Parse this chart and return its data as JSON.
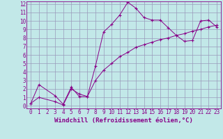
{
  "xlabel": "Windchill (Refroidissement éolien,°C)",
  "background_color": "#c2e8e8",
  "grid_color": "#9999bb",
  "line_color": "#880088",
  "xlim": [
    -0.5,
    23.5
  ],
  "ylim": [
    -0.3,
    12.3
  ],
  "xticks": [
    0,
    1,
    2,
    3,
    4,
    5,
    6,
    7,
    8,
    9,
    10,
    11,
    12,
    13,
    14,
    15,
    16,
    17,
    18,
    19,
    20,
    21,
    22,
    23
  ],
  "yticks": [
    0,
    1,
    2,
    3,
    4,
    5,
    6,
    7,
    8,
    9,
    10,
    11,
    12
  ],
  "curve1_x": [
    0,
    1,
    3,
    4,
    5,
    6,
    7,
    8,
    9,
    10,
    11,
    12,
    13,
    14,
    15,
    16,
    17,
    18,
    19,
    20,
    21,
    22,
    23
  ],
  "curve1_y": [
    0.3,
    2.5,
    1.2,
    0.2,
    2.2,
    1.1,
    1.1,
    4.7,
    8.7,
    9.6,
    10.7,
    12.2,
    11.5,
    10.4,
    10.1,
    10.1,
    9.2,
    8.3,
    7.6,
    7.7,
    10.0,
    10.1,
    9.3
  ],
  "curve2_x": [
    0,
    1,
    3,
    4,
    5,
    6,
    7,
    8,
    9,
    10,
    11,
    12,
    13,
    14,
    15,
    16,
    17,
    18,
    19,
    20,
    21,
    22,
    23
  ],
  "curve2_y": [
    0.3,
    1.0,
    0.5,
    0.1,
    2.0,
    1.4,
    1.1,
    3.0,
    4.2,
    5.0,
    5.8,
    6.3,
    6.9,
    7.2,
    7.5,
    7.8,
    8.0,
    8.3,
    8.5,
    8.8,
    9.0,
    9.3,
    9.5
  ],
  "font_size_label": 6.0,
  "font_size_tick": 5.5,
  "font_size_xlabel": 6.5,
  "marker": "+"
}
